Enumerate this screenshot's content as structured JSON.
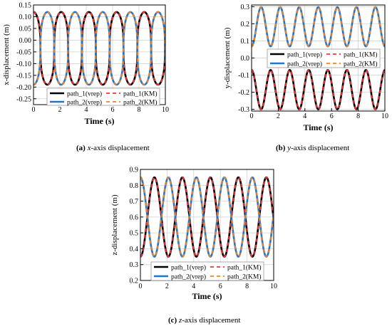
{
  "figures": [
    {
      "caption_letter": "(a)",
      "caption_var": "x",
      "caption_rest": "-axis displacement"
    },
    {
      "caption_letter": "(b)",
      "caption_var": "y",
      "caption_rest": "-axis displacement"
    },
    {
      "caption_letter": "(c)",
      "caption_var": "z",
      "caption_rest": "-axis displacement"
    }
  ],
  "colors": {
    "path_1_vrep": "#000000",
    "path_2_vrep": "#1f77d4",
    "path_1_KM": "#ff3030",
    "path_2_KM": "#ff7f0e",
    "grid": "#cfcfcf"
  },
  "chart_data": [
    {
      "type": "line",
      "xlabel": "Time (s)",
      "ylabel": "x-displacement (m)",
      "xlim": [
        0,
        10
      ],
      "ylim": [
        -0.275,
        0.15
      ],
      "xticks": [
        0,
        2,
        4,
        6,
        8,
        10
      ],
      "yticks": [
        0.15,
        0.1,
        0.05,
        0.0,
        -0.05,
        -0.1,
        -0.15,
        -0.2,
        -0.25
      ],
      "ytick_labels": [
        "0.15",
        "0.10",
        "0.05",
        "0.00",
        "-0.05",
        "-0.10",
        "-0.15",
        "-0.20",
        "-0.25"
      ],
      "grid": true,
      "legend": {
        "placement": "bottom",
        "entries": [
          "path_1(vrep)",
          "path_1(KM)",
          "path_2(vrep)",
          "path_2(KM)"
        ]
      },
      "series": [
        {
          "name": "path_1(vrep)",
          "shape": "square-ish",
          "mean": -0.035,
          "amplitude": 0.155,
          "period": 2.1,
          "phase": 0.0,
          "start": 0.105
        },
        {
          "name": "path_1(KM)",
          "shape": "square-ish",
          "mean": -0.035,
          "amplitude": 0.155,
          "period": 2.1,
          "phase": 0.0,
          "start": 0.105
        },
        {
          "name": "path_2(vrep)",
          "shape": "square-ish",
          "mean": -0.035,
          "amplitude": 0.155,
          "period": 2.1,
          "phase": 1.05,
          "start": -0.175
        },
        {
          "name": "path_2(KM)",
          "shape": "square-ish",
          "mean": -0.035,
          "amplitude": 0.155,
          "period": 2.1,
          "phase": 1.05,
          "start": -0.175
        }
      ]
    },
    {
      "type": "line",
      "xlabel": "Time (s)",
      "ylabel": "y-displacement (m)",
      "xlim": [
        0,
        10
      ],
      "ylim": [
        -0.31,
        0.31
      ],
      "xticks": [
        0,
        2,
        4,
        6,
        8,
        10
      ],
      "yticks": [
        0.3,
        0.2,
        0.1,
        0.0,
        -0.1,
        -0.2,
        -0.3
      ],
      "ytick_labels": [
        "0.3",
        "0.2",
        "0.1",
        "0.0",
        "-0.1",
        "-0.2",
        "-0.3"
      ],
      "grid": true,
      "legend": {
        "placement": "center",
        "entries": [
          "path_1(vrep)",
          "path_1(KM)",
          "path_2(vrep)",
          "path_2(KM)"
        ]
      },
      "series": [
        {
          "name": "path_1(vrep)",
          "shape": "sine",
          "mean": -0.185,
          "amplitude": 0.115,
          "period": 1.43,
          "phase": 0.0,
          "start": -0.1
        },
        {
          "name": "path_1(KM)",
          "shape": "sine",
          "mean": -0.185,
          "amplitude": 0.115,
          "period": 1.43,
          "phase": 0.0,
          "start": -0.1
        },
        {
          "name": "path_2(vrep)",
          "shape": "sine",
          "mean": 0.183,
          "amplitude": 0.115,
          "period": 1.43,
          "phase": 0.0,
          "start": 0.1
        },
        {
          "name": "path_2(KM)",
          "shape": "sine",
          "mean": 0.183,
          "amplitude": 0.115,
          "period": 1.43,
          "phase": 0.0,
          "start": 0.1
        }
      ]
    },
    {
      "type": "line",
      "xlabel": "Time (s)",
      "ylabel": "z-displacement (m)",
      "xlim": [
        0,
        10
      ],
      "ylim": [
        0.2,
        0.9
      ],
      "xticks": [
        0,
        2,
        4,
        6,
        8,
        10
      ],
      "yticks": [
        0.9,
        0.8,
        0.7,
        0.6,
        0.5,
        0.4,
        0.3,
        0.2
      ],
      "ytick_labels": [
        "0.9",
        "0.8",
        "0.7",
        "0.6",
        "0.5",
        "0.4",
        "0.3",
        "0.2"
      ],
      "grid": true,
      "legend": {
        "placement": "bottom",
        "entries": [
          "path_1(vrep)",
          "path_1(KM)",
          "path_2(vrep)",
          "path_2(KM)"
        ]
      },
      "series": [
        {
          "name": "path_1(vrep)",
          "shape": "sine",
          "mean": 0.6,
          "amplitude": 0.25,
          "period": 2.1,
          "phase": 0.0,
          "start": 0.35
        },
        {
          "name": "path_1(KM)",
          "shape": "sine",
          "mean": 0.6,
          "amplitude": 0.25,
          "period": 2.1,
          "phase": 0.0,
          "start": 0.35
        },
        {
          "name": "path_2(vrep)",
          "shape": "sine",
          "mean": 0.6,
          "amplitude": 0.25,
          "period": 2.1,
          "phase": 1.05,
          "start": 0.85
        },
        {
          "name": "path_2(KM)",
          "shape": "sine",
          "mean": 0.6,
          "amplitude": 0.25,
          "period": 2.1,
          "phase": 1.05,
          "start": 0.85
        }
      ]
    }
  ]
}
